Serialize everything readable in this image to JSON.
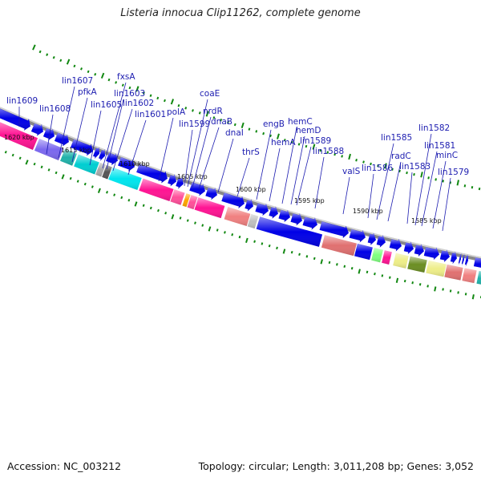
{
  "title": "Listeria innocua Clip11262, complete genome",
  "footer": {
    "accession": "Accession: NC_003212",
    "topology": "Topology: circular; Length: 3,011,208 bp; Genes: 3,052"
  },
  "colors": {
    "cds": "#0000e6",
    "label": "#1c1cb0",
    "tick": "#118811",
    "backbone": "#888888"
  },
  "kbp_labels": [
    "1620 kbp",
    "1615 kbp",
    "1610 kbp",
    "1605 kbp",
    "1600 kbp",
    "1595 kbp",
    "1590 kbp",
    "1585 kbp"
  ],
  "gene_labels": [
    "lin1609",
    "lin1608",
    "lin1607",
    "pfkA",
    "lin1605",
    "fxsA",
    "lin1603",
    "lin1602",
    "lin1601",
    "polA",
    "lin1599",
    "coaE",
    "nrdR",
    "dnaB",
    "dnaI",
    "thrS",
    "engB",
    "hemA",
    "hemC",
    "hemD",
    "lin1589",
    "lin1588",
    "valS",
    "lin1586",
    "lin1585",
    "radC",
    "lin1583",
    "lin1582",
    "lin1581",
    "minC",
    "lin1579"
  ],
  "cog_colors": [
    "#ff1493",
    "#7b68ee",
    "#20b2aa",
    "#00ced1",
    "#a9a9a9",
    "#555555",
    "#00e5ee",
    "#ff6633",
    "#ffa500",
    "#ff4f9a",
    "#f08080",
    "#c0c0c0",
    "#e07070",
    "#7fff7f",
    "#9932cc",
    "#eeee88",
    "#6b8e23"
  ]
}
